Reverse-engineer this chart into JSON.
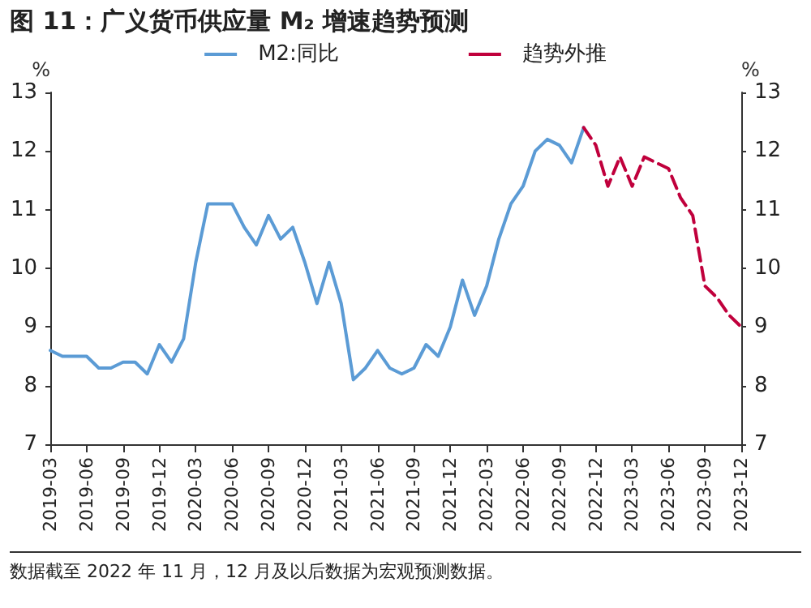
{
  "chart_data": {
    "type": "line",
    "title": "图 11：广义货币供应量 M₂ 增速趋势预测",
    "categories": [
      "2019-03",
      null,
      null,
      "2019-06",
      null,
      null,
      "2019-09",
      null,
      null,
      "2019-12",
      null,
      null,
      "2020-03",
      null,
      null,
      "2020-06",
      null,
      null,
      "2020-09",
      null,
      null,
      "2020-12",
      null,
      null,
      "2021-03",
      null,
      null,
      "2021-06",
      null,
      null,
      "2021-09",
      null,
      null,
      "2021-12",
      null,
      null,
      "2022-03",
      null,
      null,
      "2022-06",
      null,
      null,
      "2022-09",
      null,
      null,
      "2022-12",
      null,
      null,
      "2023-03",
      null,
      null,
      "2023-06",
      null,
      null,
      "2023-09",
      null,
      null,
      "2023-12"
    ],
    "series": [
      {
        "name": "M2:同比",
        "color": "#5b9bd5",
        "line_style": "solid",
        "values": [
          8.6,
          8.5,
          8.5,
          8.5,
          8.3,
          8.3,
          8.4,
          8.4,
          8.2,
          8.7,
          8.4,
          8.8,
          10.1,
          11.1,
          11.1,
          11.1,
          10.7,
          10.4,
          10.9,
          10.5,
          10.7,
          10.1,
          9.4,
          10.1,
          9.4,
          8.1,
          8.3,
          8.6,
          8.3,
          8.2,
          8.3,
          8.7,
          8.5,
          9.0,
          9.8,
          9.2,
          9.7,
          10.5,
          11.1,
          11.4,
          12.0,
          12.2,
          12.1,
          11.8,
          12.4,
          null,
          null,
          null,
          null,
          null,
          null,
          null,
          null,
          null,
          null,
          null,
          null,
          null
        ]
      },
      {
        "name": "趋势外推",
        "color": "#c0003c",
        "line_style": "dashed",
        "values": [
          null,
          null,
          null,
          null,
          null,
          null,
          null,
          null,
          null,
          null,
          null,
          null,
          null,
          null,
          null,
          null,
          null,
          null,
          null,
          null,
          null,
          null,
          null,
          null,
          null,
          null,
          null,
          null,
          null,
          null,
          null,
          null,
          null,
          null,
          null,
          null,
          null,
          null,
          null,
          null,
          null,
          null,
          null,
          null,
          12.4,
          12.1,
          11.4,
          11.9,
          11.4,
          11.9,
          11.8,
          11.7,
          11.2,
          10.9,
          9.7,
          9.5,
          9.2,
          9.0
        ]
      }
    ],
    "ylabel": "%",
    "y2label": "%",
    "ylim": [
      7,
      13
    ],
    "yticks": [
      7,
      8,
      9,
      10,
      11,
      12,
      13
    ],
    "y2lim": [
      7,
      13
    ],
    "y2ticks": [
      7,
      8,
      9,
      10,
      11,
      12,
      13
    ],
    "grid": false,
    "legend": "top",
    "marker": "none",
    "annotations": [
      "数据截至 2022 年 11 月，12 月及以后数据为宏观预测数据。"
    ]
  }
}
